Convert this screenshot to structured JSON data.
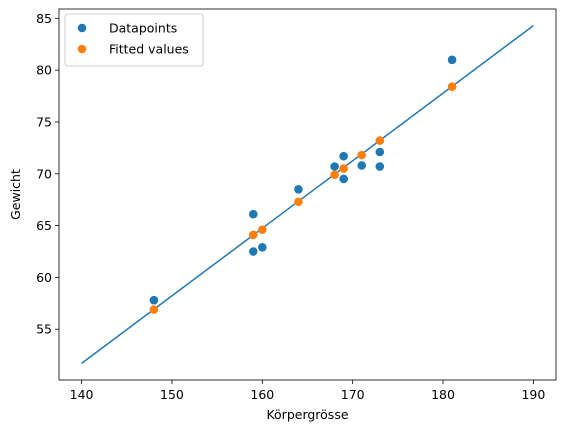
{
  "chart_data": {
    "type": "scatter",
    "xlabel": "Körpergrösse",
    "ylabel": "Gewicht",
    "xlim": [
      137.5,
      192.5
    ],
    "ylim": [
      50.1,
      85.9
    ],
    "xticks": [
      140,
      150,
      160,
      170,
      180,
      190
    ],
    "yticks": [
      55,
      60,
      65,
      70,
      75,
      80,
      85
    ],
    "grid": false,
    "legend_position": "top-left",
    "series": [
      {
        "name": "Datapoints",
        "kind": "scatter",
        "color": "#1f77b4",
        "points": [
          [
            148,
            57.8
          ],
          [
            159,
            66.1
          ],
          [
            159,
            62.5
          ],
          [
            160,
            62.9
          ],
          [
            164,
            68.5
          ],
          [
            168,
            70.7
          ],
          [
            169,
            71.7
          ],
          [
            169,
            69.5
          ],
          [
            171,
            70.8
          ],
          [
            173,
            72.1
          ],
          [
            173,
            70.7
          ],
          [
            181,
            81.0
          ]
        ]
      },
      {
        "name": "Fitted values",
        "kind": "scatter",
        "color": "#ff7f0e",
        "points": [
          [
            148,
            56.9
          ],
          [
            159,
            64.1
          ],
          [
            160,
            64.6
          ],
          [
            164,
            67.3
          ],
          [
            168,
            69.9
          ],
          [
            169,
            70.5
          ],
          [
            171,
            71.8
          ],
          [
            173,
            73.2
          ],
          [
            181,
            78.4
          ]
        ]
      },
      {
        "name": "",
        "kind": "line",
        "color": "#1f77b4",
        "points": [
          [
            140,
            51.7
          ],
          [
            190,
            84.3
          ]
        ]
      }
    ]
  }
}
